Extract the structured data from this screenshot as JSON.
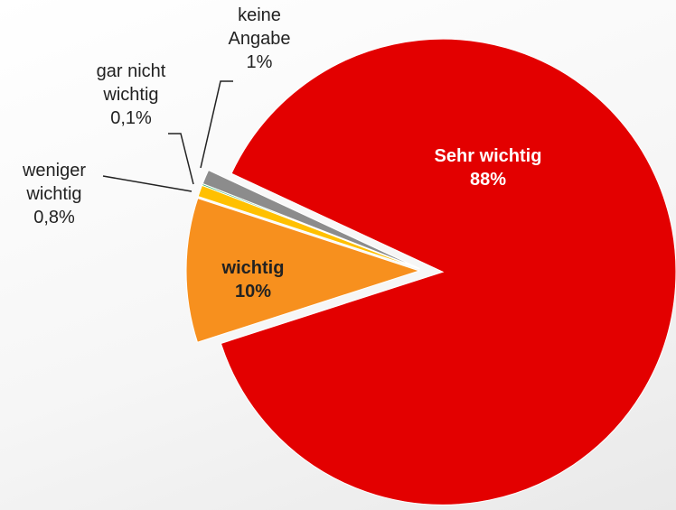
{
  "chart_data": {
    "type": "pie",
    "categories": [
      "Sehr wichtig",
      "wichtig",
      "weniger wichtig",
      "gar nicht wichtig",
      "keine Angabe"
    ],
    "values": [
      88,
      10,
      0.8,
      0.1,
      1
    ],
    "value_labels": [
      "88%",
      "10%",
      "0,8%",
      "0,1%",
      "1%"
    ],
    "colors": [
      "#e30000",
      "#f7901e",
      "#ffc000",
      "#00a050",
      "#8c8c8c"
    ]
  }
}
